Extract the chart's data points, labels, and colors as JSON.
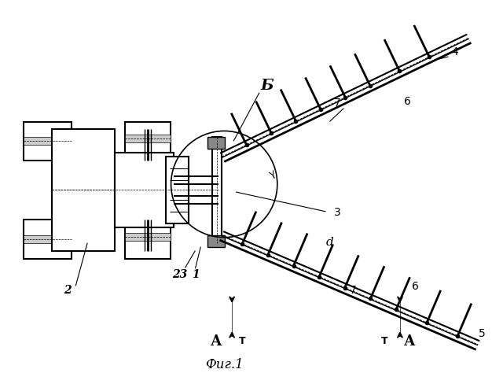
{
  "bg_color": "#ffffff",
  "line_color": "#000000",
  "fig_label": "Фиг.1",
  "label_B": "Б",
  "label_3": "3",
  "label_4": "4",
  "label_5": "5",
  "label_6a": "6",
  "label_6b": "6",
  "label_7a": "7",
  "label_7b": "7",
  "label_2": "2",
  "label_1": "1",
  "label_23": "23",
  "label_d": "d",
  "label_A1": "А",
  "label_T1": "▽",
  "label_A2": "А",
  "label_T2": "▽"
}
